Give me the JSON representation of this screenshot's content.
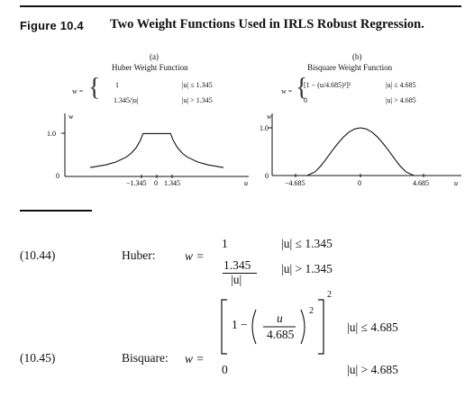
{
  "figure": {
    "label": "Figure 10.4",
    "title": "Two Weight Functions Used in IRLS Robust Regression."
  },
  "panel_a": {
    "tag": "(a)",
    "title": "Huber Weight Function",
    "w_eq": "w =",
    "case1_val": "1",
    "case1_cond": "|u| ≤ 1.345",
    "case2_val": "1.345/|u|",
    "case2_cond": "|u| > 1.345",
    "y_axis": "w",
    "y_tick_1": "1.0",
    "y_tick_0": "0",
    "x_tick_neg": "−1.345",
    "x_tick_0": "0",
    "x_tick_pos": "1.345",
    "x_axis": "u"
  },
  "panel_b": {
    "tag": "(b)",
    "title": "Bisquare Weight Function",
    "w_eq": "w =",
    "case1_val": "[1 − (u/4.685)²]²",
    "case1_cond": "|u| ≤ 4.685",
    "case2_val": "0",
    "case2_cond": "|u| > 4.685",
    "y_axis": "w",
    "y_tick_1": "1.0",
    "y_tick_0": "0",
    "x_tick_neg": "−4.685",
    "x_tick_0": "0",
    "x_tick_pos": "4.685",
    "x_axis": "u"
  },
  "equations": {
    "huber_number": "(10.44)",
    "huber_name": "Huber:",
    "huber_w": "w =",
    "huber_case1_val": "1",
    "huber_case1_cond": "|u| ≤ 1.345",
    "huber_frac_num": "1.345",
    "huber_frac_den": "|u|",
    "huber_case2_cond": "|u| > 1.345",
    "bisq_number": "(10.45)",
    "bisq_name": "Bisquare:",
    "bisq_w": "w =",
    "bisq_one_minus": "1 −",
    "bisq_frac_num": "u",
    "bisq_frac_den": "4.685",
    "bisq_inner_exp": "2",
    "bisq_outer_exp": "2",
    "bisq_case1_cond": "|u| ≤ 4.685",
    "bisq_case2_val": "0",
    "bisq_case2_cond": "|u| > 4.685"
  },
  "chart_data": [
    {
      "type": "line",
      "title": "Huber Weight Function",
      "xlabel": "u",
      "ylabel": "w",
      "x_ticks": [
        "−1.345",
        "0",
        "1.345"
      ],
      "y_ticks": [
        "0",
        "1.0"
      ],
      "xlim": [
        -6.5,
        6.5
      ],
      "ylim": [
        0,
        1.1
      ],
      "series": [
        {
          "x": [
            -6.5,
            -5,
            -4,
            -3,
            -2.5,
            -2,
            -1.6,
            -1.345,
            0,
            1.345,
            1.6,
            2,
            2.5,
            3,
            4,
            5,
            6.5
          ],
          "y": [
            0.207,
            0.269,
            0.336,
            0.448,
            0.538,
            0.673,
            0.841,
            1.0,
            1.0,
            1.0,
            0.841,
            0.673,
            0.538,
            0.448,
            0.336,
            0.269,
            0.207
          ]
        }
      ]
    },
    {
      "type": "line",
      "title": "Bisquare Weight Function",
      "xlabel": "u",
      "ylabel": "w",
      "x_ticks": [
        "−4.685",
        "0",
        "4.685"
      ],
      "y_ticks": [
        "0",
        "1.0"
      ],
      "xlim": [
        -7.5,
        7.5
      ],
      "ylim": [
        0,
        1.1
      ],
      "series": [
        {
          "x": [
            -7.5,
            -6,
            -4.685,
            -4,
            -3.5,
            -3,
            -2.5,
            -2,
            -1.5,
            -1,
            -0.5,
            0,
            0.5,
            1,
            1.5,
            2,
            2.5,
            3,
            3.5,
            4,
            4.685,
            6,
            7.5
          ],
          "y": [
            0,
            0,
            0,
            0.073,
            0.195,
            0.348,
            0.513,
            0.668,
            0.806,
            0.912,
            0.977,
            1.0,
            0.977,
            0.912,
            0.806,
            0.668,
            0.513,
            0.348,
            0.195,
            0.073,
            0,
            0,
            0
          ]
        }
      ]
    }
  ]
}
